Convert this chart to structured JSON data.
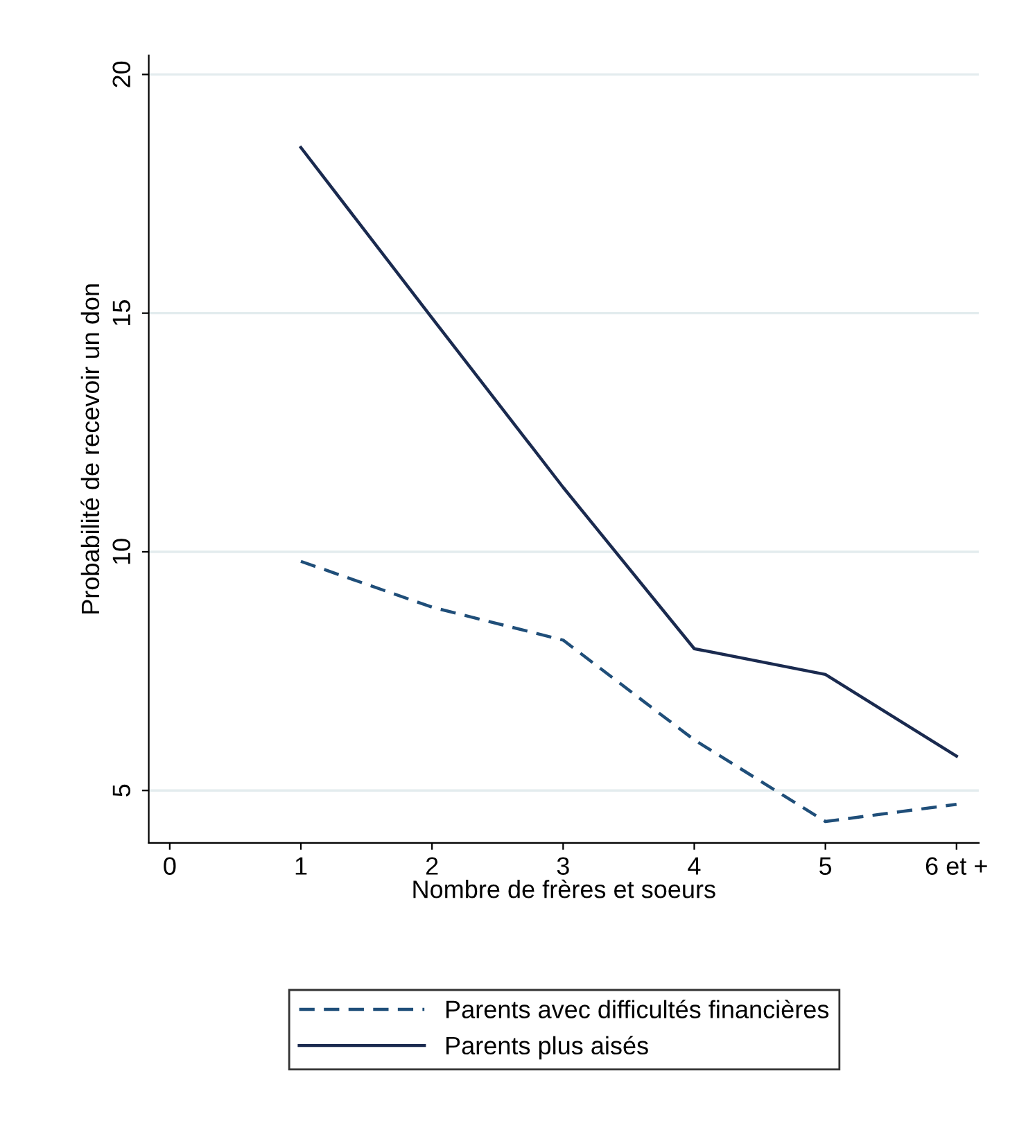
{
  "chart_data": {
    "type": "line",
    "xlabel": "Nombre de frères et soeurs",
    "ylabel": "Probabilité de recevoir un don",
    "x": [
      1,
      2,
      3,
      4,
      5,
      6
    ],
    "xlim": [
      -0.16,
      6.17
    ],
    "xticks": [
      0,
      1,
      2,
      3,
      4,
      5,
      {
        "value": 6,
        "label": "6 et +"
      }
    ],
    "ylim": [
      3.9,
      20.4
    ],
    "yticks": [
      5,
      10,
      15,
      20
    ],
    "grid": "y",
    "legend": "bottom",
    "series": [
      {
        "name": "Parents avec difficultés financières",
        "color": "#1f4e79",
        "line_style": "dashed",
        "values": [
          9.8,
          8.84,
          8.15,
          6.06,
          4.35,
          4.71
        ]
      },
      {
        "name": "Parents plus aisés",
        "color": "#1a2a4f",
        "line_style": "solid",
        "values": [
          18.47,
          14.9,
          11.35,
          7.97,
          7.43,
          5.72
        ]
      }
    ]
  }
}
